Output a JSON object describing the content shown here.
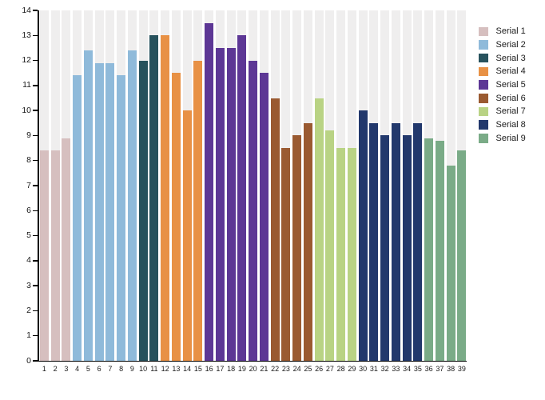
{
  "chart_data": {
    "type": "bar",
    "title": "",
    "xlabel": "",
    "ylabel": "",
    "ylim": [
      0,
      14
    ],
    "y_ticks": [
      "0",
      "1",
      "2",
      "3",
      "4",
      "5",
      "6",
      "7",
      "8",
      "9",
      "10",
      "11",
      "12",
      "13",
      "14"
    ],
    "x_labels": [
      "1",
      "2",
      "3",
      "4",
      "5",
      "6",
      "7",
      "8",
      "9",
      "10",
      "11",
      "12",
      "13",
      "14",
      "15",
      "16",
      "17",
      "18",
      "19",
      "20",
      "21",
      "22",
      "23",
      "24",
      "25",
      "26",
      "27",
      "28",
      "29",
      "30",
      "31",
      "32",
      "33",
      "34",
      "35",
      "36",
      "37",
      "38",
      "39"
    ],
    "grid": "vertical-striped-column-backgrounds",
    "legend_position": "right",
    "series": [
      {
        "name": "Serial 1",
        "color": "#d6bfbf",
        "values": [
          8.4,
          8.4,
          8.9
        ]
      },
      {
        "name": "Serial 2",
        "color": "#8fbada",
        "values": [
          11.4,
          12.4,
          11.9,
          11.9,
          11.4,
          12.4
        ]
      },
      {
        "name": "Serial 3",
        "color": "#27525d",
        "values": [
          12.0,
          13.0
        ]
      },
      {
        "name": "Serial 4",
        "color": "#e89145",
        "values": [
          13.0,
          11.5,
          10.0,
          12.0
        ]
      },
      {
        "name": "Serial 5",
        "color": "#5d3795",
        "values": [
          13.5,
          12.5,
          12.5,
          13.0,
          12.0,
          11.5
        ]
      },
      {
        "name": "Serial 6",
        "color": "#9a5a31",
        "values": [
          10.5,
          8.5,
          9.0,
          9.5
        ]
      },
      {
        "name": "Serial 7",
        "color": "#b9d384",
        "values": [
          10.5,
          9.2,
          8.5,
          8.5
        ]
      },
      {
        "name": "Serial 8",
        "color": "#22386c",
        "values": [
          10.0,
          9.5,
          9.0,
          9.5,
          9.0,
          9.5
        ]
      },
      {
        "name": "Serial 9",
        "color": "#7aab87",
        "values": [
          8.9,
          8.8,
          7.8,
          8.4
        ]
      }
    ],
    "colors": {
      "column_background": "#efeeee",
      "axis": "#000000",
      "tick_text": "#1a1a1a",
      "legend_text": "#1b1b1b",
      "background": "#ffffff"
    }
  }
}
